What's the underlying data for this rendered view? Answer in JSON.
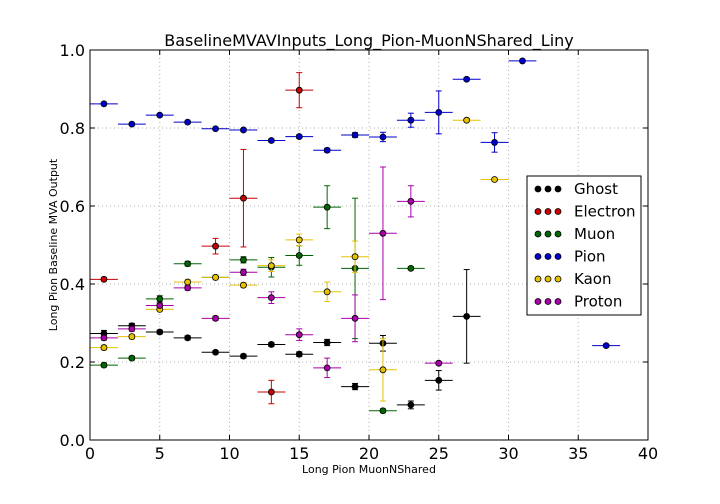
{
  "chart_data": {
    "type": "scatter",
    "title": "BaselineMVAVInputs_Long_Pion-MuonNShared_Liny",
    "xlabel": "Long Pion MuonNShared",
    "ylabel": "Long Pion Baseline MVA Output",
    "xlim": [
      0,
      40
    ],
    "ylim": [
      0.0,
      1.0
    ],
    "xticks": [
      0,
      5,
      10,
      15,
      20,
      25,
      30,
      35,
      40
    ],
    "xtick_labels": [
      "0",
      "5",
      "10",
      "15",
      "20",
      "25",
      "30",
      "35",
      "40"
    ],
    "yticks": [
      0.0,
      0.2,
      0.4,
      0.6,
      0.8,
      1.0
    ],
    "ytick_labels": [
      "0.0",
      "0.2",
      "0.4",
      "0.6",
      "0.8",
      "1.0"
    ],
    "grid": true,
    "legend_position": "right",
    "x_bin_half_width": 1,
    "series": [
      {
        "name": "Ghost",
        "color": "#000000",
        "points": [
          {
            "x": 1,
            "y": 0.273,
            "err": 0.008
          },
          {
            "x": 3,
            "y": 0.293,
            "err": 0.006
          },
          {
            "x": 5,
            "y": 0.277,
            "err": 0.005
          },
          {
            "x": 7,
            "y": 0.262,
            "err": 0.005
          },
          {
            "x": 9,
            "y": 0.225,
            "err": 0.004
          },
          {
            "x": 11,
            "y": 0.215,
            "err": 0.005
          },
          {
            "x": 13,
            "y": 0.245,
            "err": 0.005
          },
          {
            "x": 15,
            "y": 0.22,
            "err": 0.006
          },
          {
            "x": 17,
            "y": 0.25,
            "err": 0.008
          },
          {
            "x": 19,
            "y": 0.137,
            "err": 0.008
          },
          {
            "x": 21,
            "y": 0.248,
            "err": 0.02
          },
          {
            "x": 23,
            "y": 0.09,
            "err": 0.01
          },
          {
            "x": 25,
            "y": 0.153,
            "err": 0.025
          },
          {
            "x": 27,
            "y": 0.317,
            "err": 0.12
          }
        ]
      },
      {
        "name": "Electron",
        "color": "#cc0000",
        "points": [
          {
            "x": 1,
            "y": 0.412,
            "err": 0.004
          },
          {
            "x": 9,
            "y": 0.497,
            "err": 0.02
          },
          {
            "x": 11,
            "y": 0.62,
            "err": 0.125
          },
          {
            "x": 13,
            "y": 0.123,
            "err": 0.03
          },
          {
            "x": 15,
            "y": 0.897,
            "err": 0.045
          }
        ]
      },
      {
        "name": "Muon",
        "color": "#006600",
        "points": [
          {
            "x": 1,
            "y": 0.192,
            "err": 0.005
          },
          {
            "x": 3,
            "y": 0.21,
            "err": 0.005
          },
          {
            "x": 5,
            "y": 0.362,
            "err": 0.008
          },
          {
            "x": 7,
            "y": 0.452,
            "err": 0.006
          },
          {
            "x": 9,
            "y": 0.417,
            "err": 0.006
          },
          {
            "x": 11,
            "y": 0.462,
            "err": 0.008
          },
          {
            "x": 13,
            "y": 0.443,
            "err": 0.025
          },
          {
            "x": 15,
            "y": 0.473,
            "err": 0.025
          },
          {
            "x": 17,
            "y": 0.597,
            "err": 0.055
          },
          {
            "x": 19,
            "y": 0.44,
            "err": 0.18
          },
          {
            "x": 21,
            "y": 0.075,
            "err": 0.005
          },
          {
            "x": 23,
            "y": 0.44,
            "err": 0.004
          }
        ]
      },
      {
        "name": "Pion",
        "color": "#0000cc",
        "points": [
          {
            "x": 1,
            "y": 0.862,
            "err": 0.002
          },
          {
            "x": 3,
            "y": 0.81,
            "err": 0.002
          },
          {
            "x": 5,
            "y": 0.833,
            "err": 0.002
          },
          {
            "x": 7,
            "y": 0.815,
            "err": 0.003
          },
          {
            "x": 9,
            "y": 0.798,
            "err": 0.003
          },
          {
            "x": 11,
            "y": 0.795,
            "err": 0.003
          },
          {
            "x": 13,
            "y": 0.768,
            "err": 0.004
          },
          {
            "x": 15,
            "y": 0.778,
            "err": 0.004
          },
          {
            "x": 17,
            "y": 0.743,
            "err": 0.005
          },
          {
            "x": 19,
            "y": 0.782,
            "err": 0.006
          },
          {
            "x": 21,
            "y": 0.777,
            "err": 0.012
          },
          {
            "x": 23,
            "y": 0.82,
            "err": 0.018
          },
          {
            "x": 25,
            "y": 0.84,
            "err": 0.055
          },
          {
            "x": 27,
            "y": 0.925,
            "err": 0.004
          },
          {
            "x": 29,
            "y": 0.763,
            "err": 0.025
          },
          {
            "x": 31,
            "y": 0.972,
            "err": 0.003
          },
          {
            "x": 37,
            "y": 0.242,
            "err": 0.003
          }
        ]
      },
      {
        "name": "Kaon",
        "color": "#e6c200",
        "points": [
          {
            "x": 1,
            "y": 0.237,
            "err": 0.006
          },
          {
            "x": 3,
            "y": 0.265,
            "err": 0.006
          },
          {
            "x": 5,
            "y": 0.335,
            "err": 0.006
          },
          {
            "x": 7,
            "y": 0.405,
            "err": 0.006
          },
          {
            "x": 9,
            "y": 0.417,
            "err": 0.006
          },
          {
            "x": 11,
            "y": 0.397,
            "err": 0.006
          },
          {
            "x": 13,
            "y": 0.447,
            "err": 0.015
          },
          {
            "x": 15,
            "y": 0.513,
            "err": 0.015
          },
          {
            "x": 17,
            "y": 0.38,
            "err": 0.025
          },
          {
            "x": 19,
            "y": 0.47,
            "err": 0.04
          },
          {
            "x": 21,
            "y": 0.18,
            "err": 0.08
          },
          {
            "x": 27,
            "y": 0.82,
            "err": 0.004
          },
          {
            "x": 29,
            "y": 0.668,
            "err": 0.004
          }
        ]
      },
      {
        "name": "Proton",
        "color": "#aa00aa",
        "points": [
          {
            "x": 1,
            "y": 0.262,
            "err": 0.006
          },
          {
            "x": 3,
            "y": 0.285,
            "err": 0.006
          },
          {
            "x": 5,
            "y": 0.345,
            "err": 0.006
          },
          {
            "x": 7,
            "y": 0.39,
            "err": 0.006
          },
          {
            "x": 9,
            "y": 0.312,
            "err": 0.005
          },
          {
            "x": 11,
            "y": 0.43,
            "err": 0.008
          },
          {
            "x": 13,
            "y": 0.365,
            "err": 0.015
          },
          {
            "x": 15,
            "y": 0.27,
            "err": 0.015
          },
          {
            "x": 17,
            "y": 0.185,
            "err": 0.025
          },
          {
            "x": 19,
            "y": 0.312,
            "err": 0.06
          },
          {
            "x": 21,
            "y": 0.53,
            "err": 0.17
          },
          {
            "x": 23,
            "y": 0.612,
            "err": 0.04
          },
          {
            "x": 25,
            "y": 0.197,
            "err": 0.004
          }
        ]
      }
    ]
  }
}
